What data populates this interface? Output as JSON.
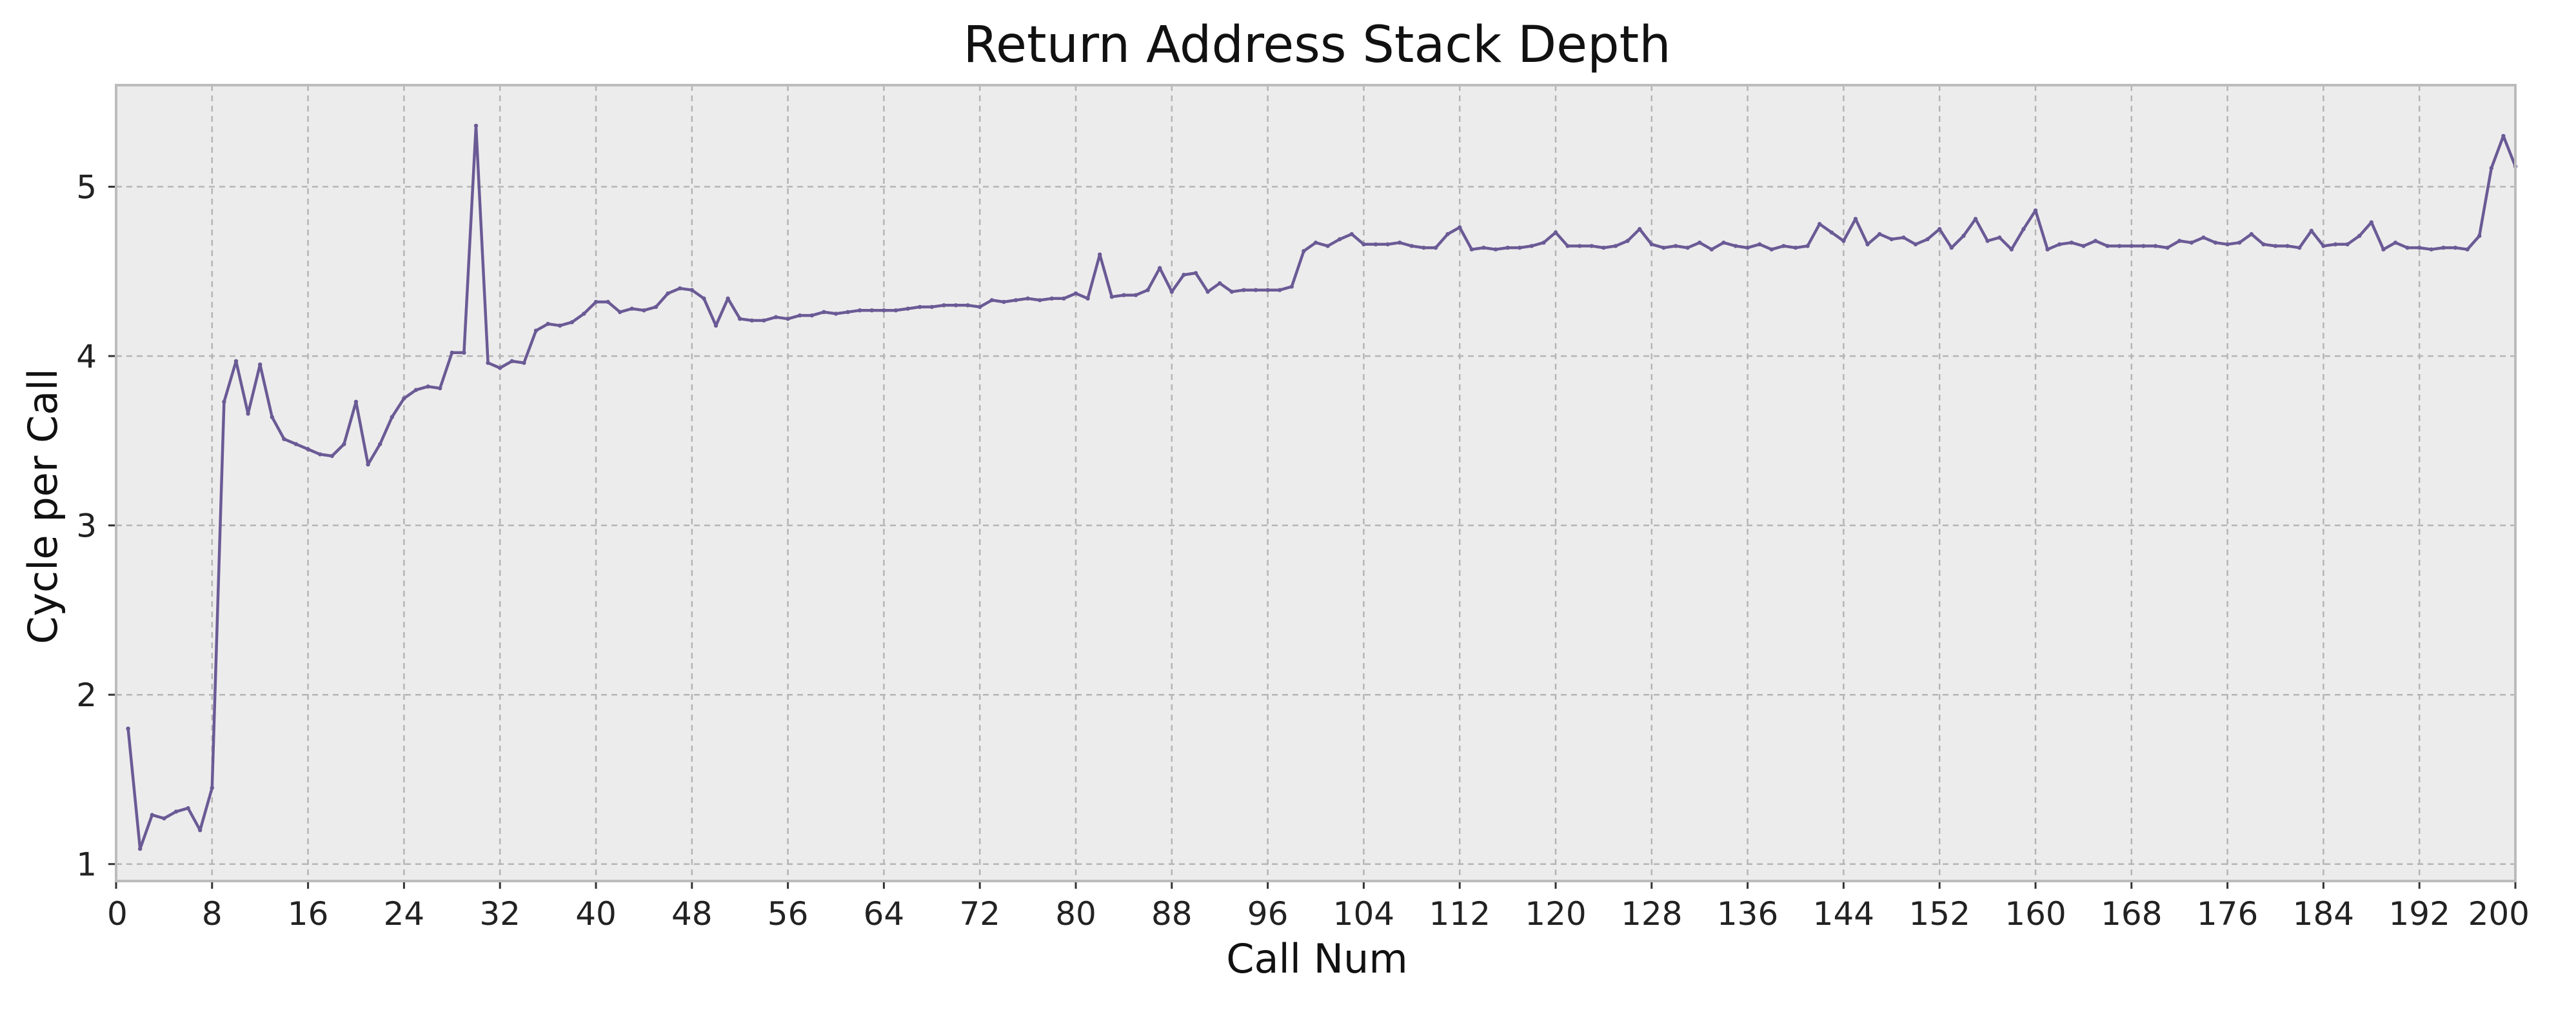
{
  "chart_data": {
    "type": "line",
    "title": "Return Address Stack Depth",
    "xlabel": "Call Num",
    "ylabel": "Cycle per Call",
    "xlim": [
      0,
      200
    ],
    "ylim": [
      0.9,
      5.6
    ],
    "xticks": [
      0,
      8,
      16,
      24,
      32,
      40,
      48,
      56,
      64,
      72,
      80,
      88,
      96,
      104,
      112,
      120,
      128,
      136,
      144,
      152,
      160,
      168,
      176,
      184,
      192,
      200
    ],
    "yticks": [
      1,
      2,
      3,
      4,
      5
    ],
    "grid": true,
    "legend": "none",
    "colors": {
      "line": "#6a5a95",
      "plot_background": "#ececec",
      "grid": "#b5b5b5",
      "frame": "#bcbcbc"
    },
    "series": [
      {
        "x": [
          1,
          2,
          3,
          4,
          5,
          6,
          7,
          8,
          9,
          10,
          11,
          12,
          13,
          14,
          15,
          16,
          17,
          18,
          19,
          20,
          21,
          22,
          23,
          24,
          25,
          26,
          27,
          28,
          29,
          30,
          31,
          32,
          33,
          34,
          35,
          36,
          37,
          38,
          39,
          40,
          41,
          42,
          43,
          44,
          45,
          46,
          47,
          48,
          49,
          50,
          51,
          52,
          53,
          54,
          55,
          56,
          57,
          58,
          59,
          60,
          61,
          62,
          63,
          64,
          65,
          66,
          67,
          68,
          69,
          70,
          71,
          72,
          73,
          74,
          75,
          76,
          77,
          78,
          79,
          80,
          81,
          82,
          83,
          84,
          85,
          86,
          87,
          88,
          89,
          90,
          91,
          92,
          93,
          94,
          95,
          96,
          97,
          98,
          99,
          100,
          101,
          102,
          103,
          104,
          105,
          106,
          107,
          108,
          109,
          110,
          111,
          112,
          113,
          114,
          115,
          116,
          117,
          118,
          119,
          120,
          121,
          122,
          123,
          124,
          125,
          126,
          127,
          128,
          129,
          130,
          131,
          132,
          133,
          134,
          135,
          136,
          137,
          138,
          139,
          140,
          141,
          142,
          143,
          144,
          145,
          146,
          147,
          148,
          149,
          150,
          151,
          152,
          153,
          154,
          155,
          156,
          157,
          158,
          159,
          160,
          161,
          162,
          163,
          164,
          165,
          166,
          167,
          168,
          169,
          170,
          171,
          172,
          173,
          174,
          175,
          176,
          177,
          178,
          179,
          180,
          181,
          182,
          183,
          184,
          185,
          186,
          187,
          188,
          189,
          190,
          191,
          192,
          193,
          194,
          195,
          196,
          197,
          198,
          199,
          200
        ],
        "values": [
          1.8,
          1.09,
          1.29,
          1.27,
          1.31,
          1.33,
          1.2,
          1.45,
          3.73,
          3.97,
          3.66,
          3.95,
          3.64,
          3.51,
          3.48,
          3.45,
          3.42,
          3.41,
          3.48,
          3.73,
          3.36,
          3.48,
          3.64,
          3.75,
          3.8,
          3.82,
          3.81,
          4.02,
          4.02,
          5.36,
          3.96,
          3.93,
          3.97,
          3.96,
          4.15,
          4.19,
          4.18,
          4.2,
          4.25,
          4.32,
          4.32,
          4.26,
          4.28,
          4.27,
          4.29,
          4.37,
          4.4,
          4.39,
          4.34,
          4.18,
          4.34,
          4.22,
          4.21,
          4.21,
          4.23,
          4.22,
          4.24,
          4.24,
          4.26,
          4.25,
          4.26,
          4.27,
          4.27,
          4.27,
          4.27,
          4.28,
          4.29,
          4.29,
          4.3,
          4.3,
          4.3,
          4.29,
          4.33,
          4.32,
          4.33,
          4.34,
          4.33,
          4.34,
          4.34,
          4.37,
          4.34,
          4.6,
          4.35,
          4.36,
          4.36,
          4.39,
          4.52,
          4.38,
          4.48,
          4.49,
          4.38,
          4.43,
          4.38,
          4.39,
          4.39,
          4.39,
          4.39,
          4.41,
          4.62,
          4.67,
          4.65,
          4.69,
          4.72,
          4.66,
          4.66,
          4.66,
          4.67,
          4.65,
          4.64,
          4.64,
          4.72,
          4.76,
          4.63,
          4.64,
          4.63,
          4.64,
          4.64,
          4.65,
          4.67,
          4.73,
          4.65,
          4.65,
          4.65,
          4.64,
          4.65,
          4.68,
          4.75,
          4.66,
          4.64,
          4.65,
          4.64,
          4.67,
          4.63,
          4.67,
          4.65,
          4.64,
          4.66,
          4.63,
          4.65,
          4.64,
          4.65,
          4.78,
          4.73,
          4.68,
          4.81,
          4.66,
          4.72,
          4.69,
          4.7,
          4.66,
          4.69,
          4.75,
          4.64,
          4.71,
          4.81,
          4.68,
          4.7,
          4.63,
          4.75,
          4.86,
          4.63,
          4.66,
          4.67,
          4.65,
          4.68,
          4.65,
          4.65,
          4.65,
          4.65,
          4.65,
          4.64,
          4.68,
          4.67,
          4.7,
          4.67,
          4.66,
          4.67,
          4.72,
          4.66,
          4.65,
          4.65,
          4.64,
          4.74,
          4.65,
          4.66,
          4.66,
          4.71,
          4.79,
          4.63,
          4.67,
          4.64,
          4.64,
          4.63,
          4.64,
          4.64,
          4.63,
          4.71,
          5.11,
          5.3,
          5.12
        ]
      }
    ]
  }
}
